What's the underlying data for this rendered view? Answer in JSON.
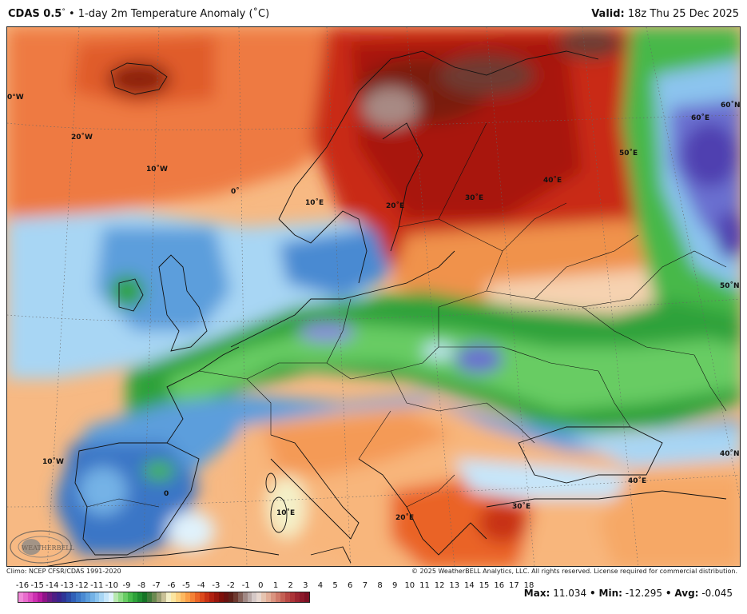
{
  "header": {
    "model": "CDAS 0.5",
    "degree_symbol": "°",
    "separator": "•",
    "product": "1-day 2m Temperature Anomaly (˚C)",
    "valid_label": "Valid:",
    "valid_time": "18z Thu 25 Dec 2025"
  },
  "map": {
    "projection_region": "Europe",
    "labels": {
      "lon_30w": "0°W",
      "lon_20w": "20˚W",
      "lon_10w": "10˚W",
      "lon_0": "0˚",
      "lon_10e_north": "10˚E",
      "lon_20e_north": "20˚E",
      "lon_30e_north": "30˚E",
      "lon_40e_north": "40˚E",
      "lon_50e": "50˚E",
      "lat_60n": "60˚N",
      "lon_60e": "60˚E",
      "lat_50n": "50˚N",
      "lat_40n": "40˚N",
      "lon_10w_south": "10˚W",
      "lon_0_south": "0",
      "lon_10e_south": "10˚E",
      "lon_20e_south": "20˚E",
      "lon_30e_south": "30˚E",
      "lon_40e_south": "40˚E"
    },
    "logo": {
      "text": "WEATHERBELL"
    }
  },
  "footer": {
    "climo": "Climo: NCEP CFSR/CDAS 1991-2020",
    "copyright": "© 2025 WeatherBELL Analytics, LLC. All rights reserved. License required for commercial distribution.",
    "stats": {
      "max_label": "Max:",
      "max_value": "11.034",
      "min_label": "Min:",
      "min_value": "-12.295",
      "avg_label": "Avg:",
      "avg_value": "-0.045",
      "sep": "•"
    }
  },
  "colorbar": {
    "ticks": [
      "-16",
      "-15",
      "-14",
      "-13",
      "-12",
      "-11",
      "-10",
      "-9",
      "-8",
      "-7",
      "-6",
      "-5",
      "-4",
      "-3",
      "-2",
      "-1",
      "0",
      "1",
      "2",
      "3",
      "4",
      "5",
      "6",
      "7",
      "8",
      "9",
      "10",
      "11",
      "12",
      "13",
      "14",
      "15",
      "16",
      "17",
      "18"
    ],
    "colors": [
      "#f08ad8",
      "#e86ccc",
      "#de4ec0",
      "#cc30b0",
      "#b81a9e",
      "#8e1488",
      "#6a1a82",
      "#4e1f84",
      "#3a238c",
      "#2d3596",
      "#2b4aa6",
      "#3060b8",
      "#3b76c6",
      "#4a8ad2",
      "#5c9edc",
      "#74b2e6",
      "#8cc4ee",
      "#a8d6f4",
      "#c6e6fa",
      "#e0f2fc",
      "#b8e8b0",
      "#90dc88",
      "#68cc64",
      "#46b84a",
      "#2ea23a",
      "#1e8c30",
      "#167426",
      "#3e7a3a",
      "#6a8a50",
      "#9a9e72",
      "#c8c096",
      "#f4f0c8",
      "#fbe5a0",
      "#fcd080",
      "#fcb860",
      "#fa9e48",
      "#f48236",
      "#ea6426",
      "#dc4a1c",
      "#c83214",
      "#b02010",
      "#98160c",
      "#7e100a",
      "#6a1210",
      "#5e2018",
      "#6e3a30",
      "#846058",
      "#a08884",
      "#b8a8a6",
      "#d4c8c6",
      "#e8d8d0",
      "#e6c4b0",
      "#e2ae98",
      "#da9480",
      "#d07a6a",
      "#c46054",
      "#b84844",
      "#ac3438",
      "#9c2430",
      "#8c182a",
      "#7c1024"
    ]
  }
}
